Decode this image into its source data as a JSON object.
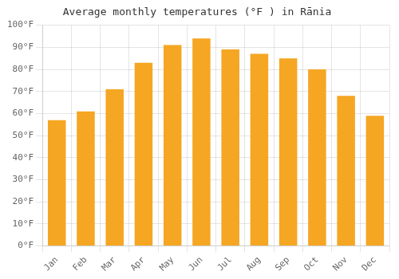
{
  "chart_data": {
    "type": "bar",
    "title": "Average monthly temperatures (°F ) in Rānia",
    "categories": [
      "Jan",
      "Feb",
      "Mar",
      "Apr",
      "May",
      "Jun",
      "Jul",
      "Aug",
      "Sep",
      "Oct",
      "Nov",
      "Dec"
    ],
    "values": [
      57,
      61,
      71,
      83,
      91,
      94,
      89,
      87,
      85,
      80,
      68,
      59
    ],
    "color": "#F5A623",
    "ylim": [
      0,
      100
    ],
    "yticks": [
      {
        "value": 0,
        "label": "0°F"
      },
      {
        "value": 10,
        "label": "10°F"
      },
      {
        "value": 20,
        "label": "20°F"
      },
      {
        "value": 30,
        "label": "30°F"
      },
      {
        "value": 40,
        "label": "40°F"
      },
      {
        "value": 50,
        "label": "50°F"
      },
      {
        "value": 60,
        "label": "60°F"
      },
      {
        "value": 70,
        "label": "70°F"
      },
      {
        "value": 80,
        "label": "80°F"
      },
      {
        "value": 90,
        "label": "90°F"
      },
      {
        "value": 100,
        "label": "100°F"
      }
    ],
    "grid": true
  }
}
